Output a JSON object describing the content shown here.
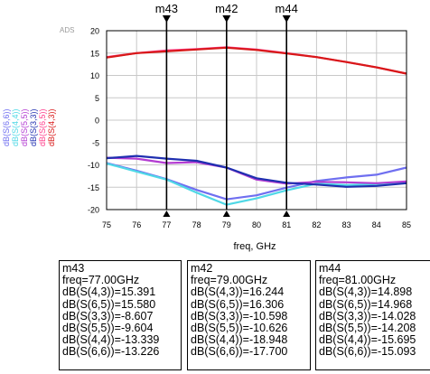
{
  "watermark": "ADS",
  "chart_data": {
    "type": "line",
    "xlabel": "freq, GHz",
    "ylabel": "",
    "xlim": [
      75,
      85
    ],
    "ylim": [
      -20,
      20
    ],
    "x_ticks": [
      "75",
      "76",
      "77",
      "78",
      "79",
      "80",
      "81",
      "82",
      "83",
      "84",
      "85"
    ],
    "y_ticks": [
      "20",
      "15",
      "10",
      "5",
      "0",
      "-5",
      "-10",
      "-15",
      "-20"
    ],
    "grid": true,
    "legend_position": "left-vertical",
    "series": [
      {
        "name": "dB(S(6,6))",
        "color": "#6f6ff0",
        "x": [
          75,
          76,
          77,
          78,
          79,
          80,
          81,
          82,
          83,
          84,
          85
        ],
        "y": [
          -9.6,
          -11.3,
          -13.2,
          -15.6,
          -17.7,
          -16.8,
          -15.1,
          -13.6,
          -12.8,
          -12.2,
          -10.6
        ]
      },
      {
        "name": "dB(S(4,4))",
        "color": "#4fd8e6",
        "x": [
          75,
          76,
          77,
          78,
          79,
          80,
          81,
          82,
          83,
          84,
          85
        ],
        "y": [
          -9.7,
          -11.5,
          -13.3,
          -16.2,
          -18.9,
          -17.5,
          -15.7,
          -14.2,
          -14.5,
          -14.3,
          -13.8
        ]
      },
      {
        "name": "dB(S(5,5))",
        "color": "#b33cd2",
        "x": [
          75,
          76,
          77,
          78,
          79,
          80,
          81,
          82,
          83,
          84,
          85
        ],
        "y": [
          -8.4,
          -8.6,
          -9.6,
          -9.4,
          -10.6,
          -13.3,
          -14.2,
          -13.8,
          -13.9,
          -14.1,
          -13.7
        ]
      },
      {
        "name": "dB(S(3,3))",
        "color": "#1f2fb0",
        "x": [
          75,
          76,
          77,
          78,
          79,
          80,
          81,
          82,
          83,
          84,
          85
        ],
        "y": [
          -8.5,
          -8.0,
          -8.6,
          -9.1,
          -10.6,
          -13.0,
          -14.0,
          -14.4,
          -14.9,
          -14.7,
          -14.1
        ]
      },
      {
        "name": "dB(S(6,5))",
        "color": "#ff3d8b",
        "x": [
          75,
          76,
          77,
          78,
          79,
          80,
          81,
          82,
          83,
          84,
          85
        ],
        "y": [
          14.1,
          15.0,
          15.6,
          15.9,
          16.3,
          15.8,
          15.0,
          14.1,
          13.0,
          11.8,
          10.4
        ]
      },
      {
        "name": "dB(S(4,3))",
        "color": "#d81818",
        "x": [
          75,
          76,
          77,
          78,
          79,
          80,
          81,
          82,
          83,
          84,
          85
        ],
        "y": [
          14.0,
          15.0,
          15.4,
          15.8,
          16.2,
          15.7,
          14.9,
          14.1,
          13.0,
          11.8,
          10.4
        ]
      }
    ],
    "markers": [
      {
        "name": "m43",
        "x": 77
      },
      {
        "name": "m42",
        "x": 79
      },
      {
        "name": "m44",
        "x": 81
      }
    ]
  },
  "marker_readouts": [
    {
      "name": "m43",
      "freq": "freq=77.00GHz",
      "lines": [
        "dB(S(4,3))=15.391",
        "dB(S(6,5))=15.580",
        "dB(S(3,3))=-8.607",
        "dB(S(5,5))=-9.604",
        "dB(S(4,4))=-13.339",
        "dB(S(6,6))=-13.226"
      ]
    },
    {
      "name": "m42",
      "freq": "freq=79.00GHz",
      "lines": [
        "dB(S(4,3))=16.244",
        "dB(S(6,5))=16.306",
        "dB(S(3,3))=-10.598",
        "dB(S(5,5))=-10.626",
        "dB(S(4,4))=-18.948",
        "dB(S(6,6))=-17.700"
      ]
    },
    {
      "name": "m44",
      "freq": "freq=81.00GHz",
      "lines": [
        "dB(S(4,3))=14.898",
        "dB(S(6,5))=14.968",
        "dB(S(3,3))=-14.028",
        "dB(S(5,5))=-14.208",
        "dB(S(4,4))=-15.695",
        "dB(S(6,6))=-15.093"
      ]
    }
  ]
}
